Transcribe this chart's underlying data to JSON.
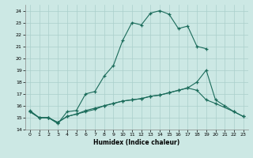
{
  "xlabel": "Humidex (Indice chaleur)",
  "bg_color": "#cce8e4",
  "grid_color": "#aacfcb",
  "line_color": "#1a6b5a",
  "xlim": [
    -0.5,
    23.5
  ],
  "ylim": [
    14,
    24.5
  ],
  "xticks": [
    0,
    1,
    2,
    3,
    4,
    5,
    6,
    7,
    8,
    9,
    10,
    11,
    12,
    13,
    14,
    15,
    16,
    17,
    18,
    19,
    20,
    21,
    22,
    23
  ],
  "yticks": [
    14,
    15,
    16,
    17,
    18,
    19,
    20,
    21,
    22,
    23,
    24
  ],
  "line1_x": [
    0,
    1,
    2,
    3,
    4,
    5,
    6,
    7,
    8,
    9,
    10,
    11,
    12,
    13,
    14,
    15,
    16,
    17,
    18,
    19
  ],
  "line1_y": [
    15.6,
    15.0,
    15.0,
    14.5,
    15.5,
    15.6,
    17.0,
    17.2,
    18.5,
    19.4,
    21.5,
    23.0,
    22.8,
    23.8,
    24.0,
    23.7,
    22.5,
    22.7,
    21.0,
    20.8
  ],
  "line2_x": [
    0,
    1,
    2,
    3,
    4,
    5,
    6,
    7,
    8,
    9,
    10,
    11,
    12,
    13,
    14,
    15,
    16,
    17,
    18,
    19,
    20,
    22,
    23
  ],
  "line2_y": [
    15.5,
    15.0,
    15.0,
    14.6,
    15.1,
    15.3,
    15.5,
    15.7,
    16.0,
    16.2,
    16.4,
    16.5,
    16.6,
    16.8,
    16.9,
    17.1,
    17.3,
    17.5,
    17.3,
    16.5,
    16.2,
    15.5,
    15.1
  ],
  "line3_x": [
    0,
    1,
    2,
    3,
    4,
    5,
    6,
    7,
    8,
    9,
    10,
    11,
    12,
    13,
    14,
    15,
    16,
    17,
    18,
    19,
    20,
    21,
    22,
    23
  ],
  "line3_y": [
    15.5,
    15.0,
    15.0,
    14.6,
    15.1,
    15.3,
    15.6,
    15.8,
    16.0,
    16.2,
    16.4,
    16.5,
    16.6,
    16.8,
    16.9,
    17.1,
    17.3,
    17.5,
    18.0,
    19.0,
    16.5,
    16.0,
    15.5,
    15.1
  ]
}
